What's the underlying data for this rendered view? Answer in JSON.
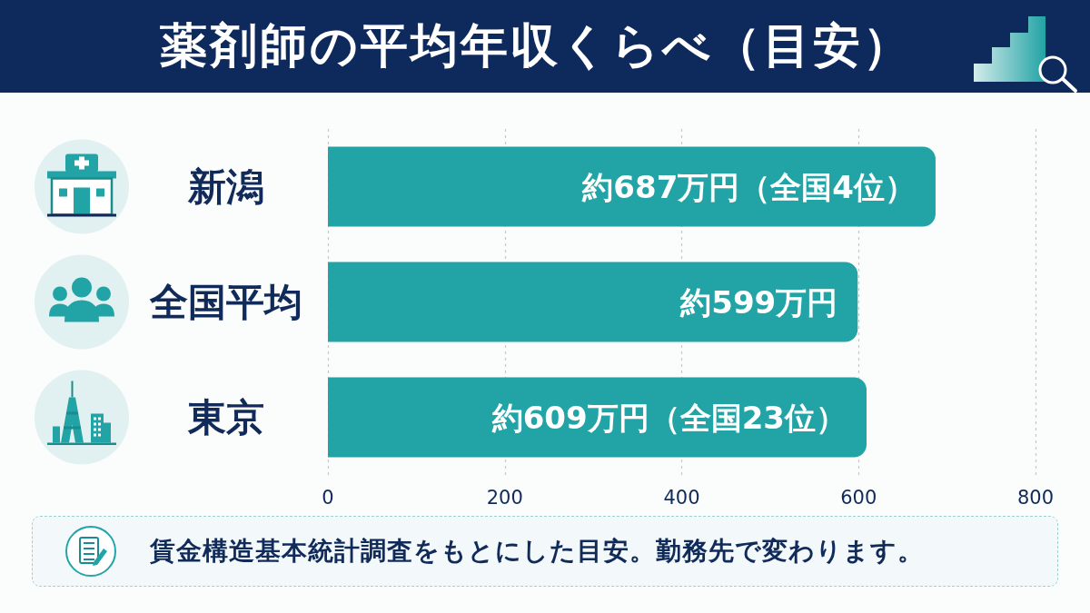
{
  "chart_data": {
    "type": "bar",
    "orientation": "horizontal",
    "title": "薬剤師の平均年収くらべ（目安）",
    "categories": [
      "新潟",
      "全国平均",
      "東京"
    ],
    "values": [
      687,
      599,
      609
    ],
    "color": "#22a3a5",
    "value_labels": [
      "約687万円（全国4位）",
      "約599万円",
      "約609万円（全国23位）"
    ],
    "xlim": [
      0,
      800
    ],
    "xticks": [
      0,
      200,
      400,
      600,
      800
    ],
    "grid": "x",
    "annotations": [
      "賃金構造基本統計調査をもとにした目安。勤務先で変わります。"
    ]
  }
}
